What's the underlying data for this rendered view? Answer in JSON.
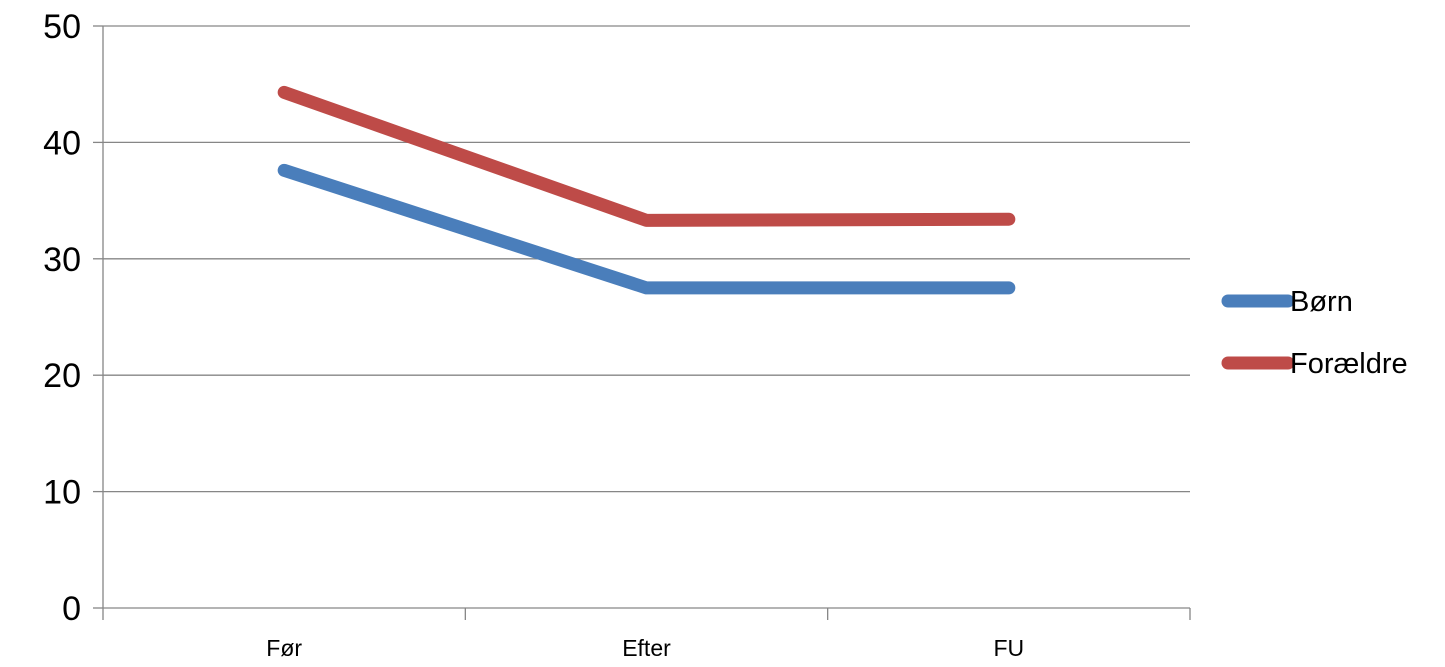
{
  "chart_data": {
    "type": "line",
    "title": "",
    "xlabel": "",
    "ylabel": "",
    "categories": [
      "Før",
      "Efter",
      "FU"
    ],
    "series": [
      {
        "name": "Børn",
        "values": [
          37.6,
          27.5,
          27.5
        ],
        "color": "#4a7ebb"
      },
      {
        "name": "Forældre",
        "values": [
          44.3,
          33.3,
          33.4
        ],
        "color": "#be4b48"
      }
    ],
    "ylim": [
      0,
      50
    ],
    "yticks": [
      0,
      10,
      20,
      30,
      40,
      50
    ],
    "grid": true,
    "legend": "right"
  }
}
